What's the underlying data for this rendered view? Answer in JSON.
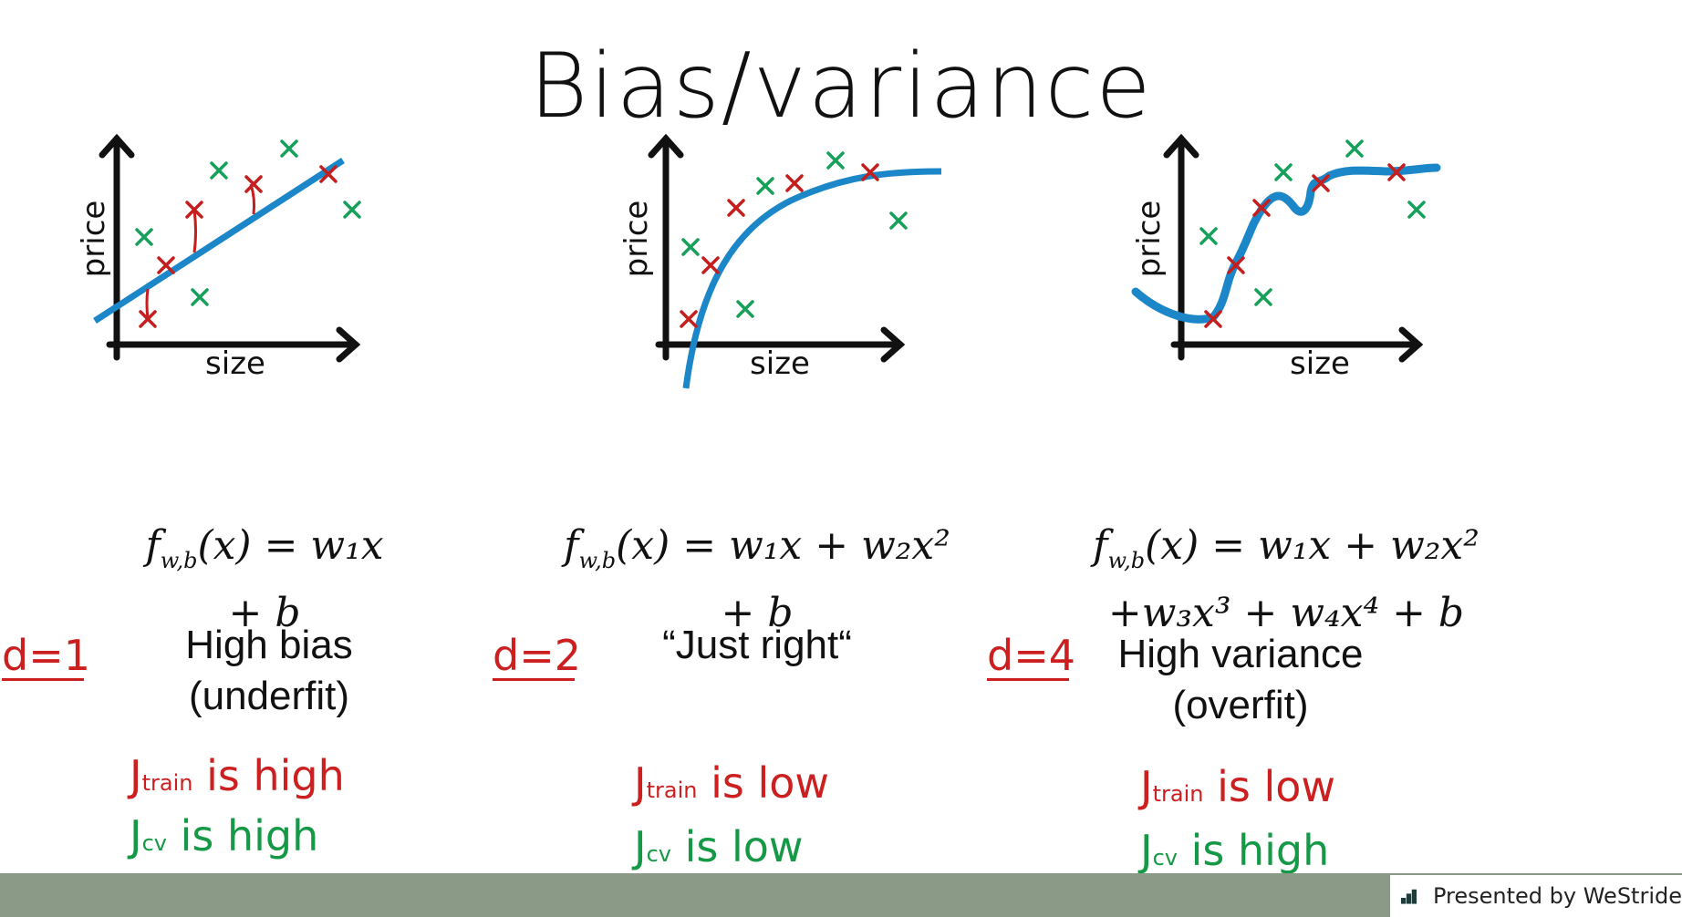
{
  "title": "Bias/variance",
  "panels": [
    {
      "xlabel": "size",
      "ylabel": "price",
      "degree": "d=1",
      "formula_line1": "f",
      "formula_sub": "w,b",
      "formula_rest1": "(x) = w₁x",
      "formula_line2": "+ b",
      "desc1": "High bias",
      "desc2": "(underfit)",
      "jtrain": "is high",
      "jcv": "is high"
    },
    {
      "xlabel": "size",
      "ylabel": "price",
      "degree": "d=2",
      "formula_line1": "f",
      "formula_sub": "w,b",
      "formula_rest1": "(x) = w₁x + w₂x²",
      "formula_line2": "+ b",
      "desc1": "“Just right“",
      "desc2": "",
      "jtrain": "is low",
      "jcv": "is low"
    },
    {
      "xlabel": "size",
      "ylabel": "price",
      "degree": "d=4",
      "formula_line1": "f",
      "formula_sub": "w,b",
      "formula_rest1": "(x) = w₁x + w₂x²",
      "formula_line2": "+w₃x³ + w₄x⁴ + b",
      "desc1": "High variance",
      "desc2": "(overfit)",
      "jtrain": "is low",
      "jcv": "is high"
    }
  ],
  "j_labels": {
    "train": "J",
    "train_sub": "train",
    "cv": "J",
    "cv_sub": "cv"
  },
  "colors": {
    "fit_line": "#1b86c8",
    "train_x": "#c41e1e",
    "cv_x": "#16a05a",
    "footer": "#8a9a86",
    "handwriting_red": "#cc1f1f",
    "handwriting_green": "#159946"
  },
  "footer": {
    "brand_text": "Presented by WeStride",
    "logo_icon": "bar-chart-logo-icon"
  }
}
